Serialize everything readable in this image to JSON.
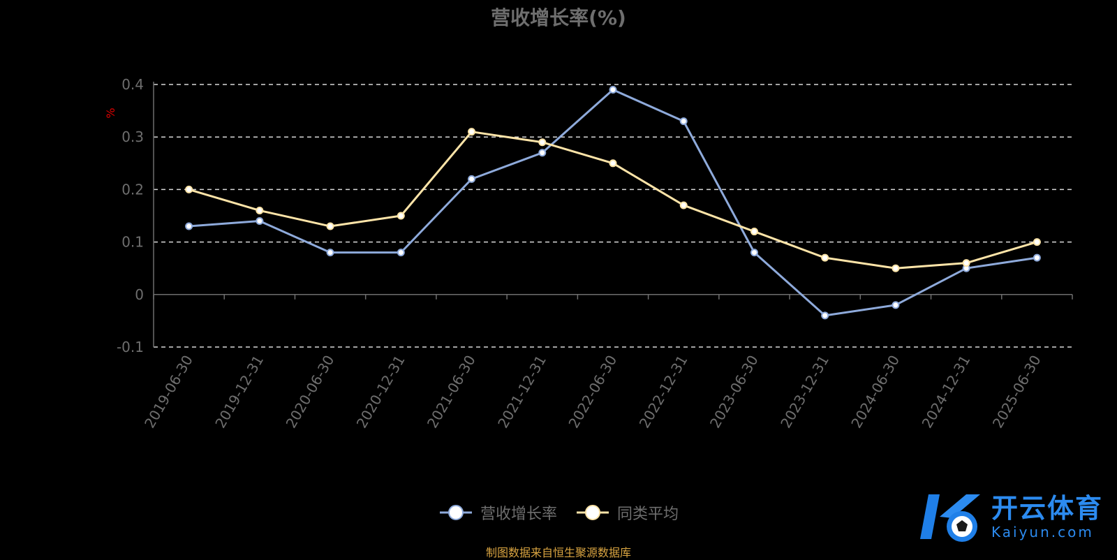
{
  "chart_data": {
    "type": "line",
    "title": "营收增长率(%)",
    "ylabel": "%",
    "ylim": [
      -0.1,
      0.4
    ],
    "yticks": [
      "-0.1",
      "0",
      "0.1",
      "0.2",
      "0.3",
      "0.4"
    ],
    "grid": true,
    "legend_position": "bottom-center",
    "categories": [
      "2019-06-30",
      "2019-12-31",
      "2020-06-30",
      "2020-12-31",
      "2021-06-30",
      "2021-12-31",
      "2022-06-30",
      "2022-12-31",
      "2023-06-30",
      "2023-12-31",
      "2024-06-30",
      "2024-12-31",
      "2025-06-30"
    ],
    "series": [
      {
        "name": "营收增长率",
        "color": "#8eaadb",
        "values": [
          0.13,
          0.14,
          0.08,
          0.08,
          0.22,
          0.27,
          0.39,
          0.33,
          0.08,
          -0.04,
          -0.02,
          0.05,
          0.07
        ]
      },
      {
        "name": "同类平均",
        "color": "#fde4a8",
        "values": [
          0.2,
          0.16,
          0.13,
          0.15,
          0.31,
          0.29,
          0.25,
          0.17,
          0.12,
          0.07,
          0.05,
          0.06,
          0.1
        ]
      }
    ]
  },
  "footer": {
    "source": "制图数据来自恒生聚源数据库"
  },
  "watermark": {
    "cn": "开云体育",
    "en": "Kaiyun.com"
  }
}
